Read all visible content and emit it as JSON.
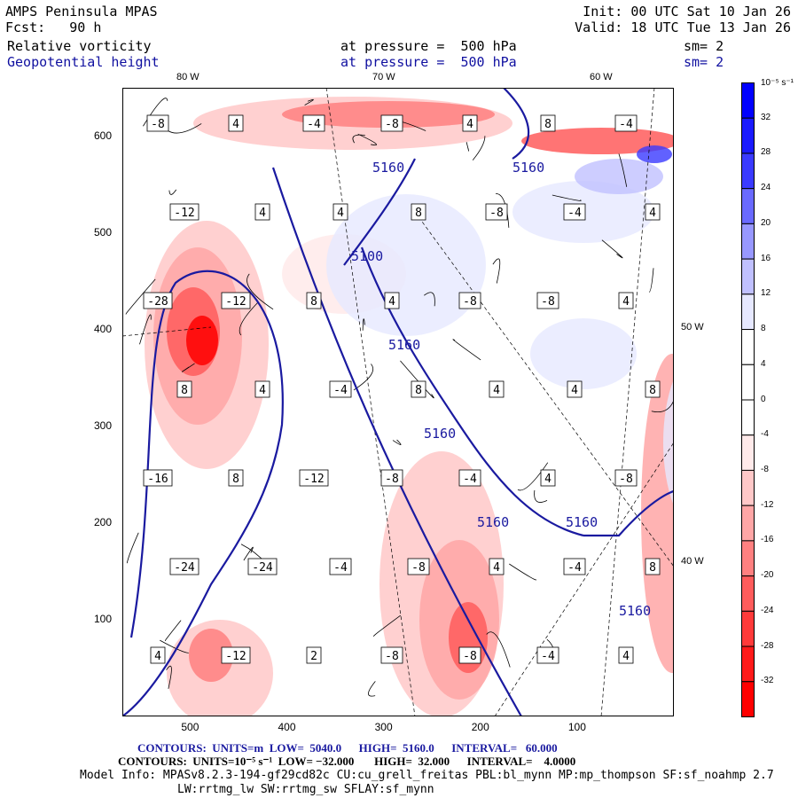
{
  "header": {
    "model": "AMPS Peninsula MPAS",
    "init": "Init: 00 UTC Sat 10 Jan 26",
    "fcst": "Fcst:   90 h",
    "valid": "Valid: 18 UTC Tue 13 Jan 26",
    "field1": {
      "name": "Relative vorticity",
      "level": "at pressure =  500 hPa",
      "sm": "sm= 2"
    },
    "field2": {
      "name": "Geopotential height",
      "level": "at pressure =  500 hPa",
      "sm": "sm= 2"
    }
  },
  "longitude_labels": {
    "top": [
      "80 W",
      "70 W",
      "60 W"
    ],
    "right": [
      "50 W",
      "40 W"
    ]
  },
  "colors": {
    "height_contour": "#1a1aa0",
    "neg": "#ff0000",
    "pos": "#0000ff"
  },
  "chart_data": {
    "type": "heatmap",
    "title": "Relative vorticity / Geopotential height at 500 hPa",
    "xlabel": "",
    "ylabel": "",
    "x_ticks": [
      "500",
      "400",
      "300",
      "200",
      "100"
    ],
    "y_ticks": [
      "600",
      "500",
      "400",
      "300",
      "200",
      "100"
    ],
    "xlim": [
      570,
      0
    ],
    "ylim": [
      0,
      650
    ],
    "colorbar": {
      "units": "10⁻⁵ s⁻¹",
      "labels": [
        "32",
        "28",
        "24",
        "20",
        "16",
        "12",
        "8",
        "4",
        "0",
        "-4",
        "-8",
        "-12",
        "-16",
        "-20",
        "-24",
        "-28",
        "-32"
      ],
      "bins": [
        "#0000ff",
        "#1a1aff",
        "#3a3aff",
        "#6a6aff",
        "#9898ff",
        "#c0c0ff",
        "#e6e8ff",
        "#ffffff",
        "#ffffff",
        "#ffffff",
        "#ffeaea",
        "#ffc8c8",
        "#ffa6a6",
        "#ff8080",
        "#ff5c5c",
        "#ff3a3a",
        "#ff1a1a",
        "#ff0000"
      ]
    },
    "height_contour_labels": [
      "5100",
      "5160",
      "5160",
      "5160",
      "5160",
      "5160",
      "5160",
      "5160"
    ],
    "vorticity_contour_labels": [
      "-8",
      "4",
      "-4",
      "-8",
      "4",
      "8",
      "-4",
      "-12",
      "4",
      "4",
      "8",
      "-8",
      "-4",
      "4",
      "-28",
      "-12",
      "8",
      "4",
      "-8",
      "-8",
      "4",
      "8",
      "4",
      "-4",
      "8",
      "4",
      "4",
      "8",
      "-16",
      "8",
      "-12",
      "-8",
      "-4",
      "4",
      "-8",
      "-24",
      "-24",
      "-4",
      "-8",
      "4",
      "-4",
      "8",
      "4",
      "-12",
      "2",
      "-8",
      "-8",
      "-4",
      "4"
    ]
  },
  "footer": {
    "height_contours": "CONTOURS:  UNITS=m  LOW=  5040.0      HIGH=  5160.0      INTERVAL=   60.000",
    "vort_contours": "CONTOURS:  UNITS=10⁻⁵ s⁻¹  LOW= −32.000       HIGH=  32.000      INTERVAL=    4.0000",
    "model_info": "Model Info: MPASv8.2.3-194-gf29cd82c CU:cu_grell_freitas PBL:bl_mynn MP:mp_thompson SF:sf_noahmp 2.7",
    "model_info2": "LW:rrtmg_lw SW:rrtmg_sw SFLAY:sf_mynn"
  }
}
